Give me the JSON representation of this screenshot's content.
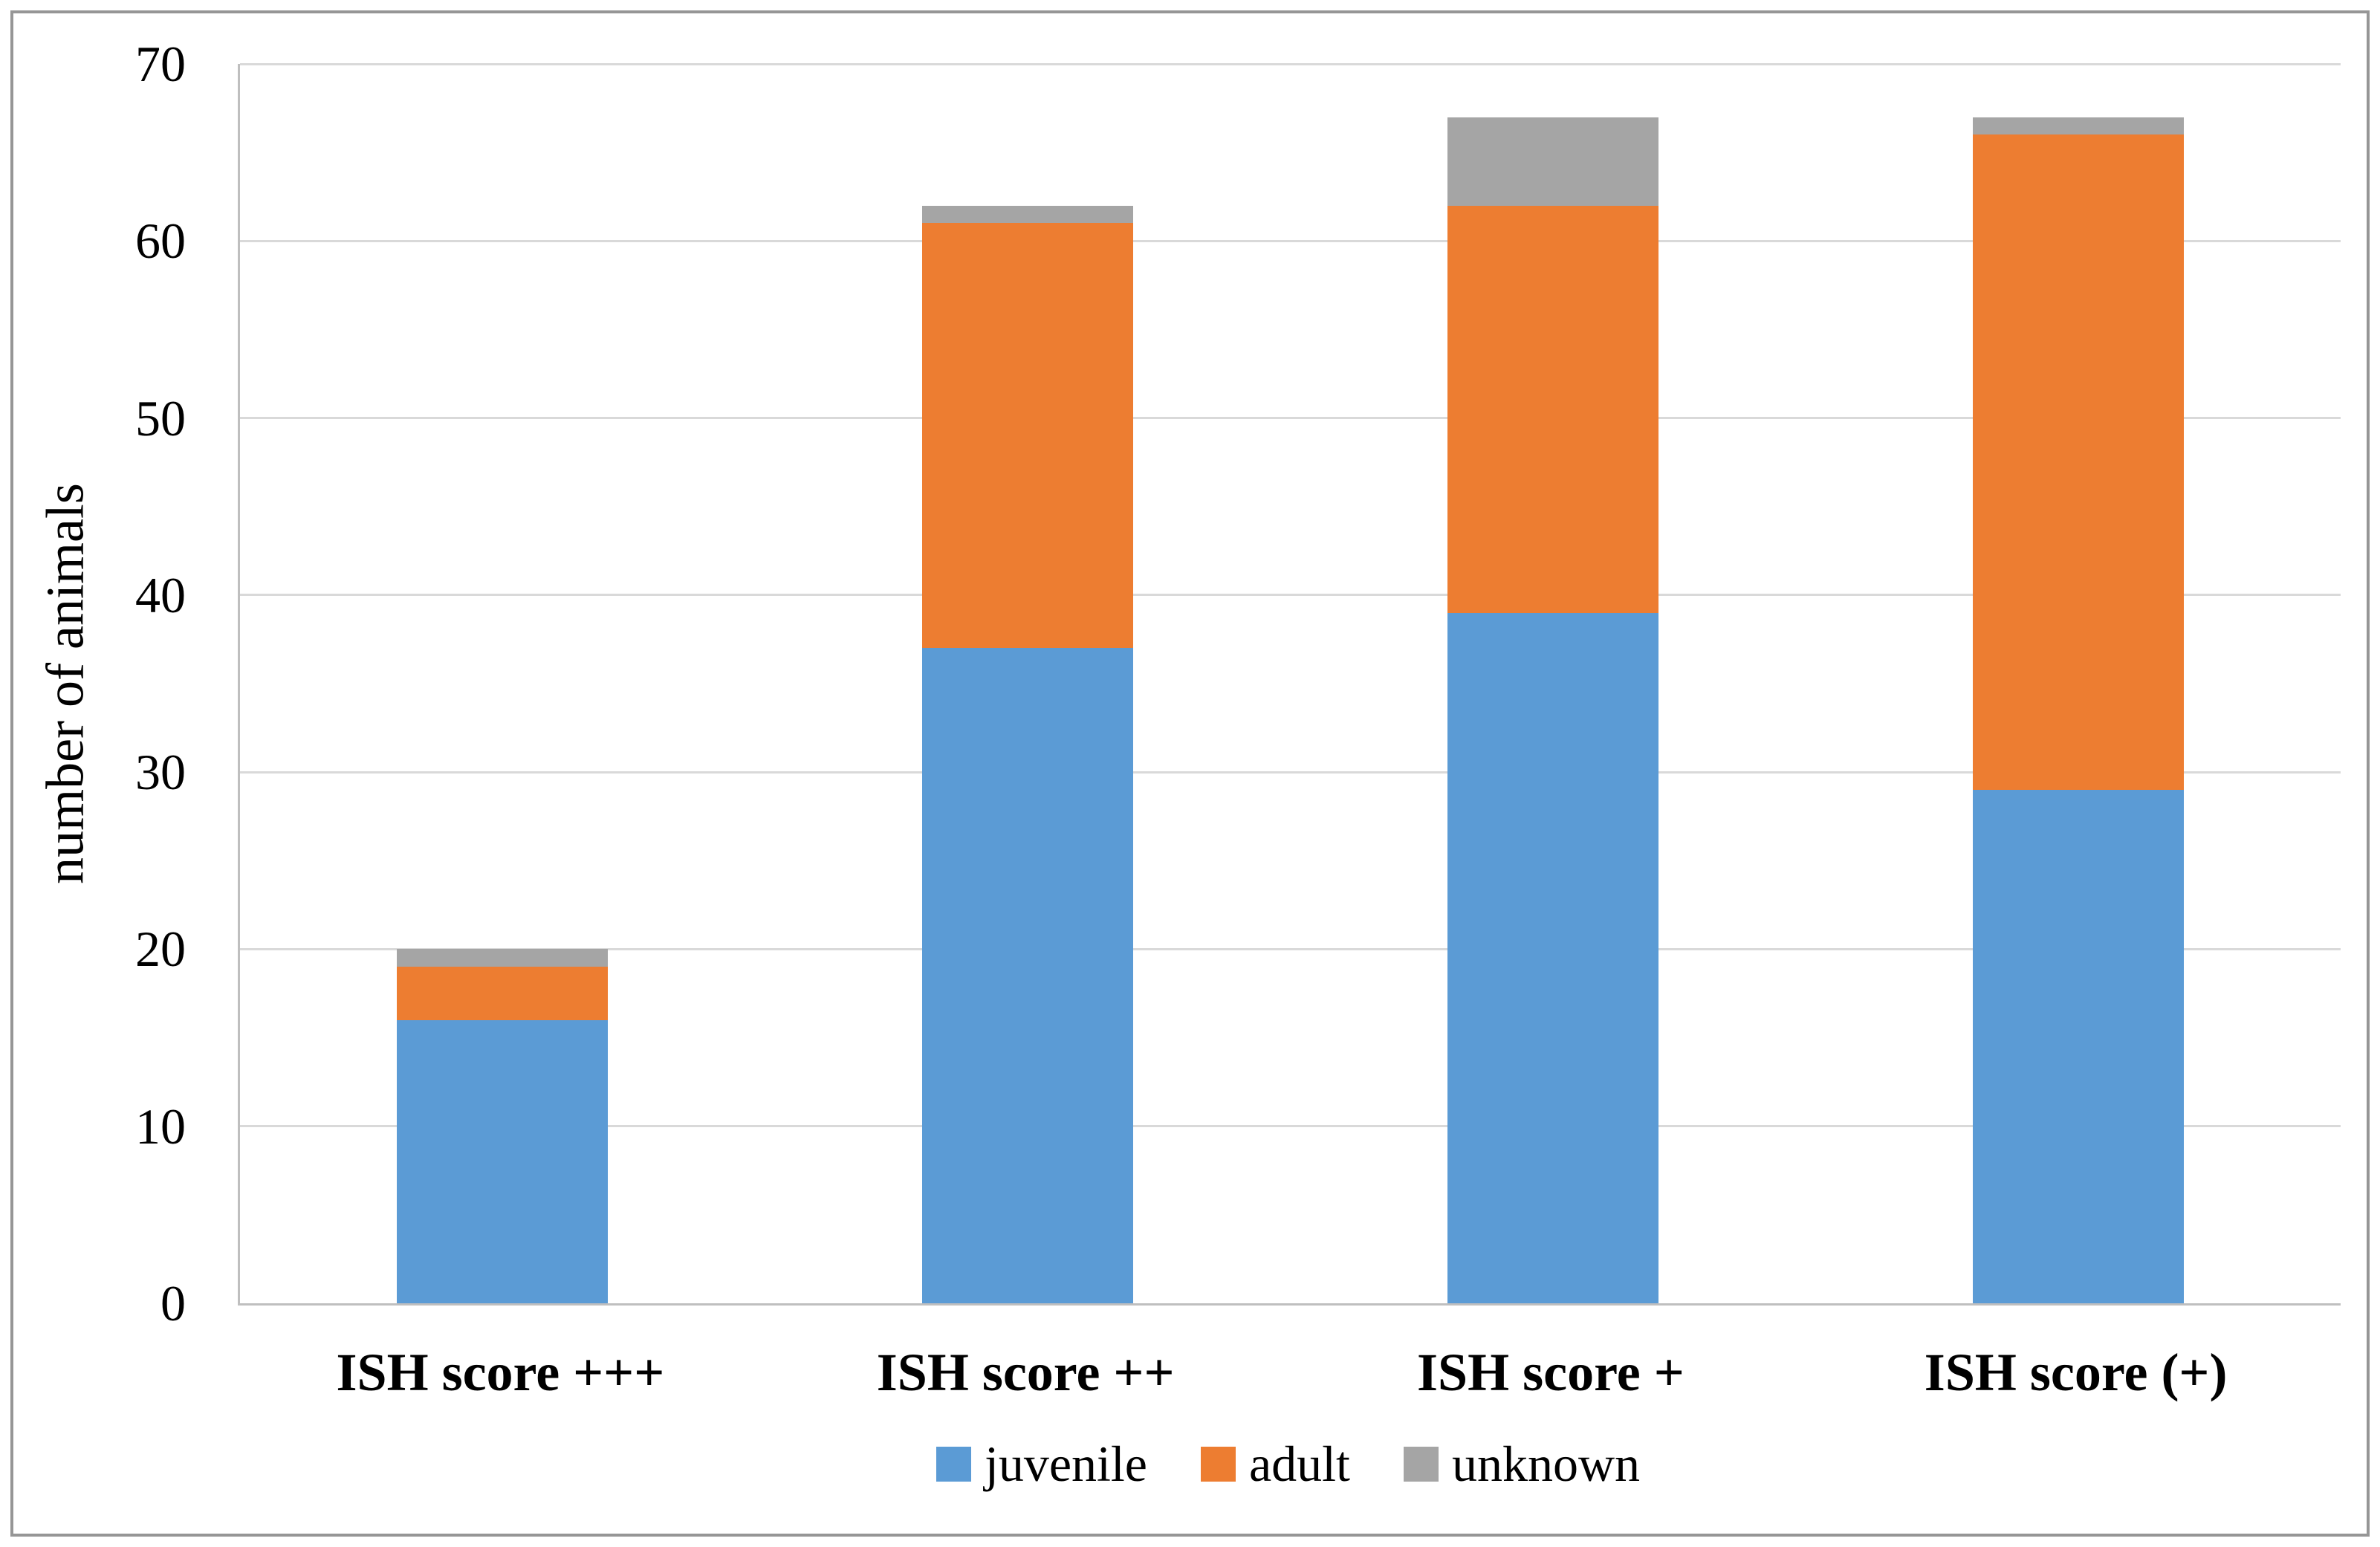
{
  "chart_data": {
    "type": "bar",
    "stacked": true,
    "categories": [
      "ISH score +++",
      "ISH score ++",
      "ISH score +",
      "ISH score (+)"
    ],
    "series": [
      {
        "name": "juvenile",
        "color": "#5B9BD5",
        "values": [
          16,
          37,
          39,
          29
        ]
      },
      {
        "name": "adult",
        "color": "#ED7D31",
        "values": [
          3,
          24,
          23,
          37
        ]
      },
      {
        "name": "unknown",
        "color": "#A5A5A5",
        "values": [
          1,
          1,
          5,
          1
        ]
      }
    ],
    "totals": [
      20,
      62,
      67,
      67
    ],
    "title": "",
    "xlabel": "",
    "ylabel": "number of animals",
    "ylim": [
      0,
      70
    ],
    "yticks": [
      0,
      10,
      20,
      30,
      40,
      50,
      60,
      70
    ],
    "grid": "horizontal",
    "legend_position": "bottom"
  },
  "colors": {
    "gridline": "#D9D9D9",
    "axis_line": "#BFBFBF",
    "figure_border": "#969696",
    "text": "#000000",
    "background": "#FFFFFF"
  }
}
